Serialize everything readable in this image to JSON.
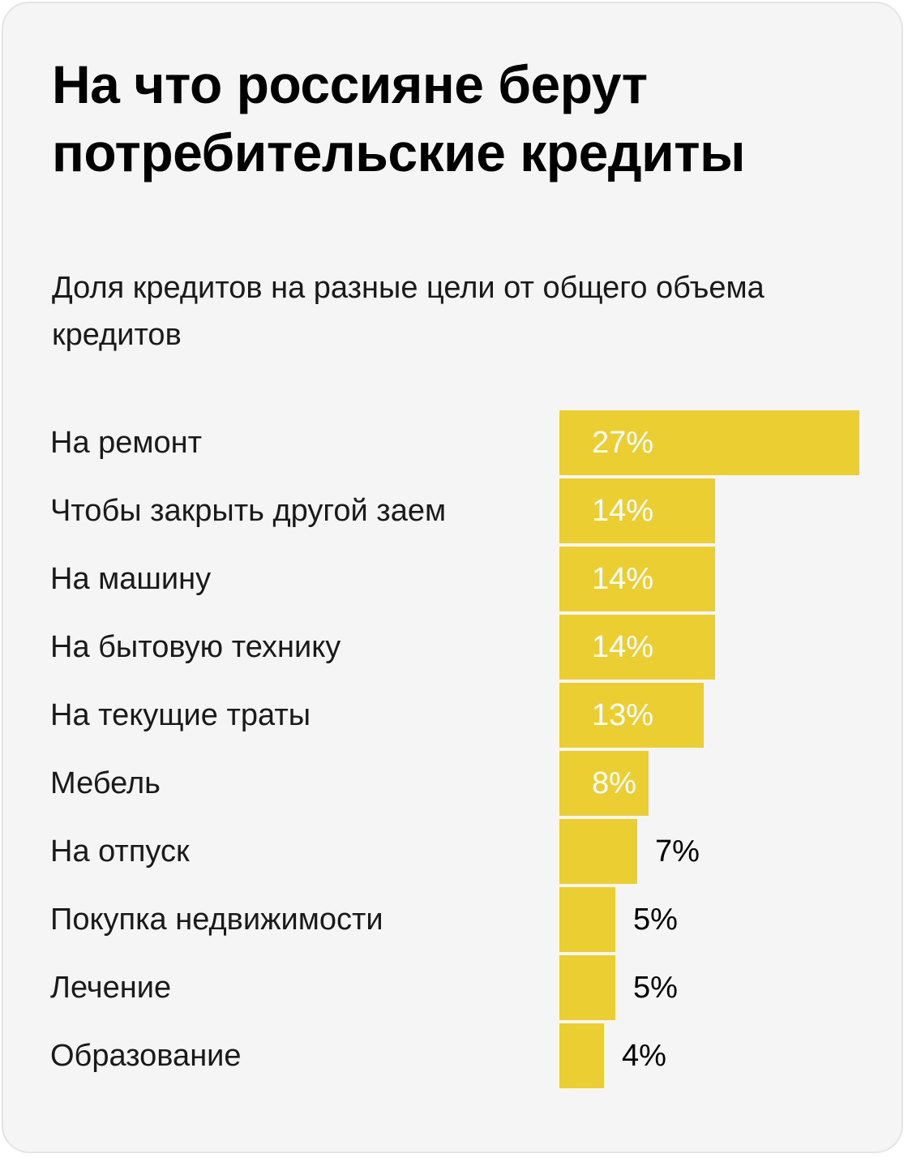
{
  "title": "На что россияне берут потребительские кредиты",
  "subtitle": "Доля кредитов на разные цели от общего объема кредитов",
  "colors": {
    "bar": "#EBCF32",
    "label_inside": "#ffffff",
    "label_outside": "#000000"
  },
  "chart_data": {
    "type": "bar",
    "orientation": "horizontal",
    "title": "На что россияне берут потребительские кредиты",
    "subtitle": "Доля кредитов на разные цели от общего объема кредитов",
    "categories": [
      "На ремонт",
      "Чтобы закрыть другой заем",
      "На машину",
      "На бытовую технику",
      "На текущие траты",
      "Мебель",
      "На отпуск",
      "Покупка недвижимости",
      "Лечение",
      "Образование"
    ],
    "values": [
      27,
      14,
      14,
      14,
      13,
      8,
      7,
      5,
      5,
      4
    ],
    "value_labels": [
      "27%",
      "14%",
      "14%",
      "14%",
      "13%",
      "8%",
      "7%",
      "5%",
      "5%",
      "4%"
    ],
    "unit": "%",
    "xlim": [
      0,
      27
    ],
    "grid": false,
    "legend": "none"
  }
}
